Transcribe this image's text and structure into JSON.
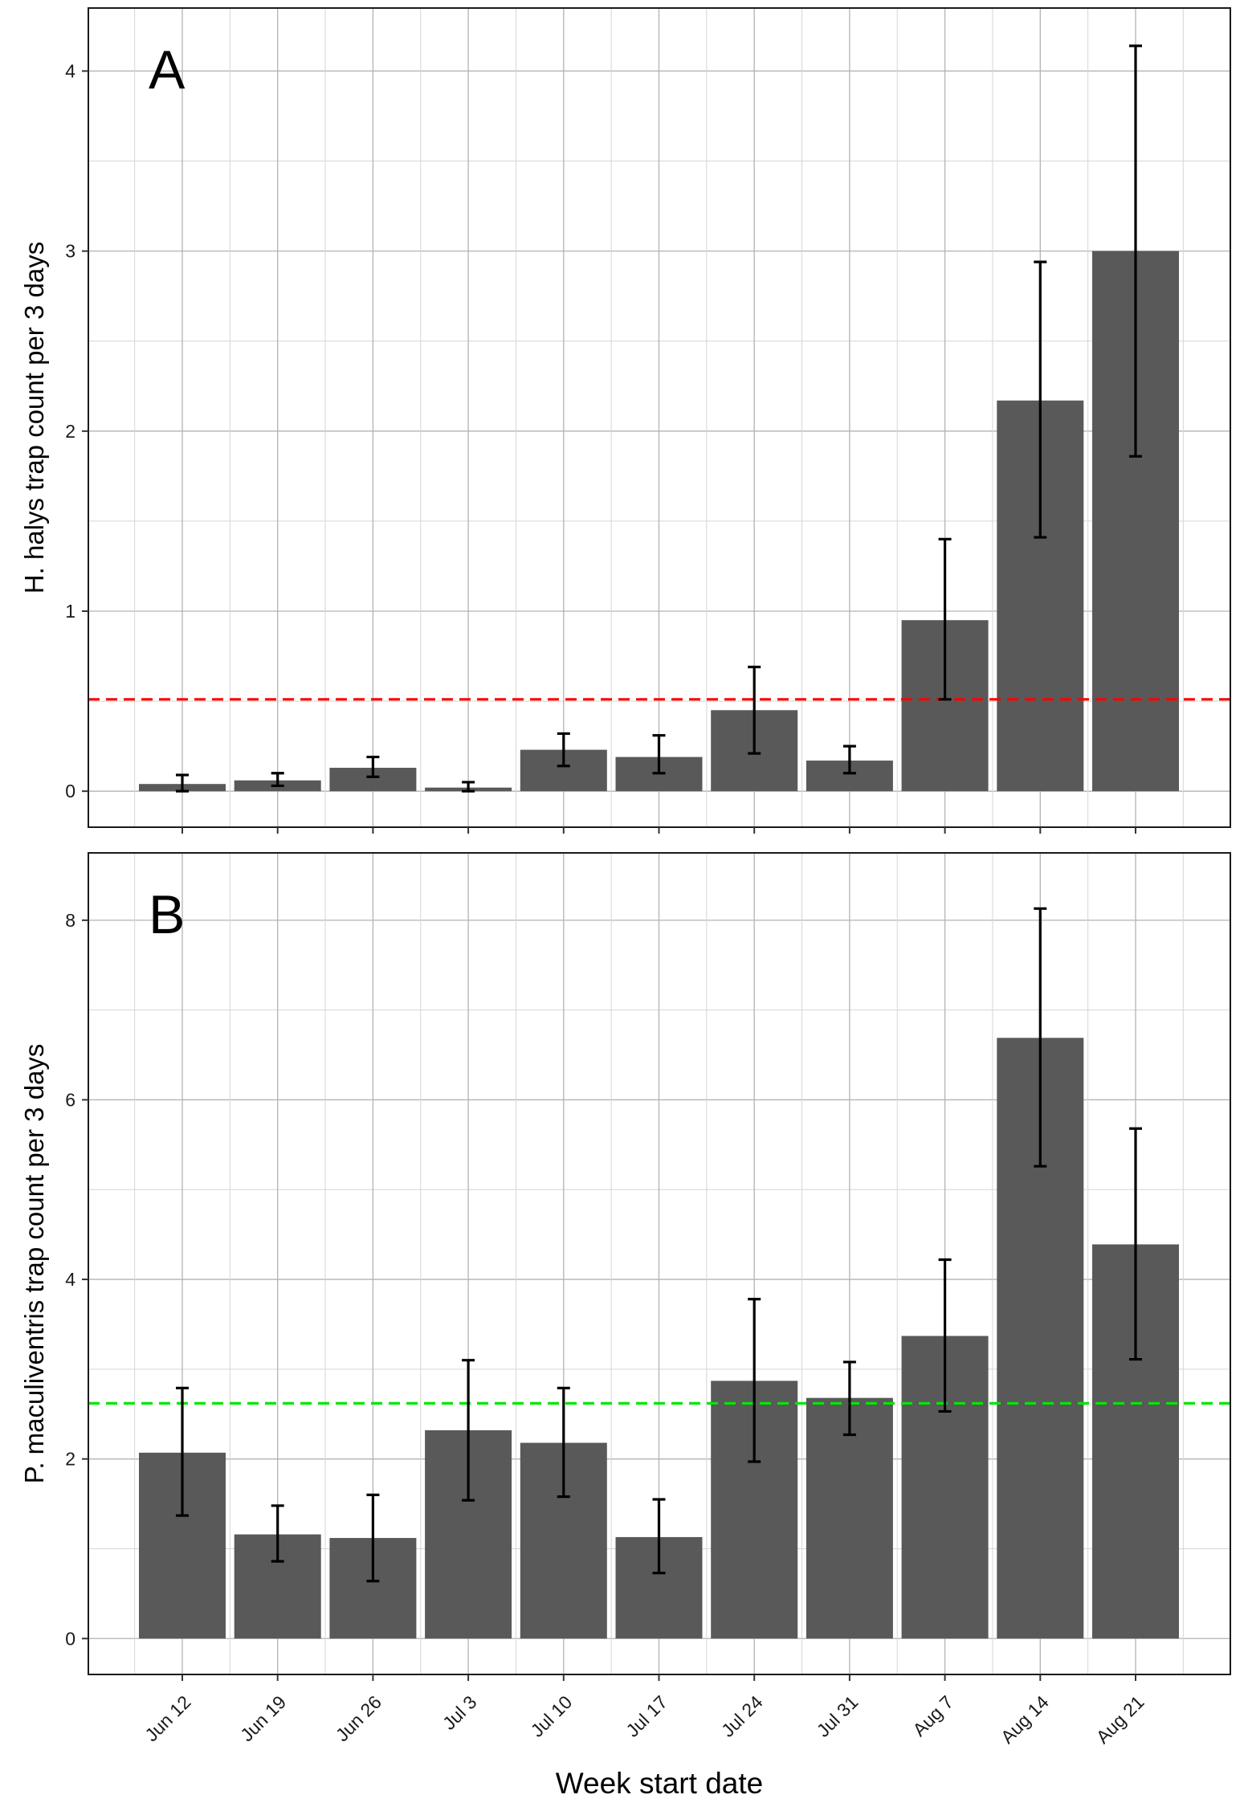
{
  "chart_data": {
    "type": "bar",
    "x_title": "Week start date",
    "categories": [
      "Jun 12",
      "Jun 19",
      "Jun 26",
      "Jul 3",
      "Jul 10",
      "Jul 17",
      "Jul 24",
      "Jul 31",
      "Aug 7",
      "Aug 14",
      "Aug 21"
    ],
    "bar_color": "#595959",
    "errorbar_color": "#000000",
    "grid": true,
    "panels": [
      {
        "tag": "A",
        "ylabel": "H. halys trap count per 3 days",
        "ylim": [
          -0.2,
          4.35
        ],
        "yticks": [
          0,
          1,
          2,
          3,
          4
        ],
        "values": [
          0.04,
          0.06,
          0.13,
          0.02,
          0.23,
          0.19,
          0.45,
          0.17,
          0.95,
          2.17,
          3.0
        ],
        "err_low": [
          0.0,
          0.03,
          0.08,
          0.0,
          0.14,
          0.1,
          0.21,
          0.1,
          0.51,
          1.41,
          1.86
        ],
        "err_high": [
          0.09,
          0.1,
          0.19,
          0.05,
          0.32,
          0.31,
          0.69,
          0.25,
          1.4,
          2.94,
          4.14
        ],
        "reference_line": {
          "value": 0.51,
          "color": "#ff0000",
          "style": "dashed"
        }
      },
      {
        "tag": "B",
        "ylabel": "P. maculiventris trap count per 3 days",
        "ylim": [
          -0.4,
          8.75
        ],
        "yticks": [
          0,
          2,
          4,
          6,
          8
        ],
        "values": [
          2.07,
          1.16,
          1.12,
          2.32,
          2.18,
          1.13,
          2.87,
          2.68,
          3.37,
          6.69,
          4.39
        ],
        "err_low": [
          1.37,
          0.86,
          0.64,
          1.54,
          1.58,
          0.73,
          1.97,
          2.27,
          2.53,
          5.26,
          3.11
        ],
        "err_high": [
          2.79,
          1.48,
          1.6,
          3.1,
          2.79,
          1.55,
          3.78,
          3.08,
          4.22,
          8.13,
          5.68
        ],
        "reference_line": {
          "value": 2.62,
          "color": "#00e600",
          "style": "dashed"
        }
      }
    ]
  }
}
